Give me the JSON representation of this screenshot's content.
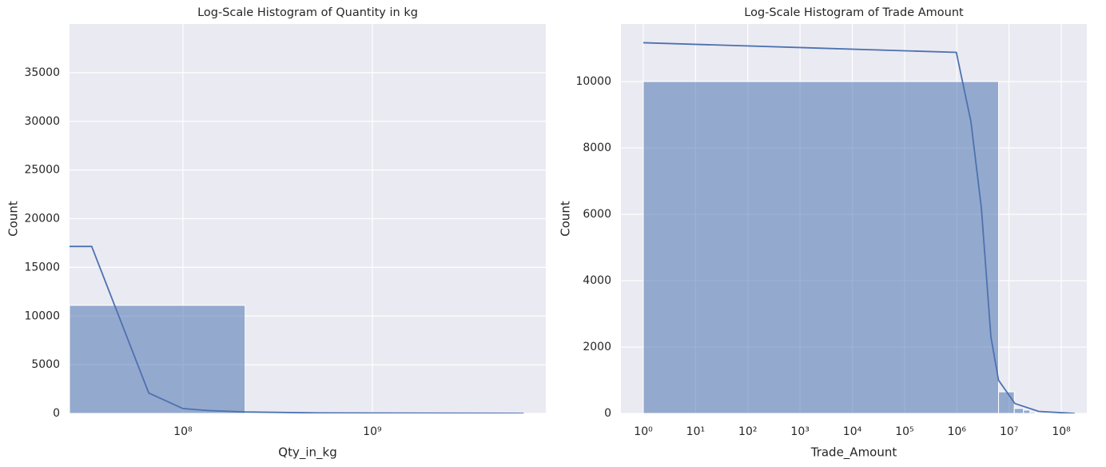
{
  "chart_data": [
    {
      "type": "histogram",
      "title": "Log-Scale Histogram of Quantity in kg",
      "xlabel": "Qty_in_kg",
      "ylabel": "Count",
      "xscale": "log",
      "grid": true,
      "color": "#4c72b0",
      "bins": [
        25200000,
        213000000,
        1800000000,
        8200000000
      ],
      "counts": [
        11100,
        40,
        5
      ],
      "kde": {
        "x": [
          25200000,
          33000000,
          66000000,
          100000000,
          135000000,
          213000000,
          530000000,
          6300000000
        ],
        "y": [
          17150,
          17150,
          2100,
          500,
          300,
          150,
          50,
          0
        ]
      },
      "xlim": [
        25200000,
        8240000000
      ],
      "ylim": [
        0,
        40000
      ],
      "xticks": [
        {
          "value": 100000000,
          "label": "10⁸"
        },
        {
          "value": 1000000000,
          "label": "10⁹"
        }
      ],
      "yticks": [
        0,
        5000,
        10000,
        15000,
        20000,
        25000,
        30000,
        35000
      ]
    },
    {
      "type": "histogram",
      "title": "Log-Scale Histogram of Trade Amount",
      "xlabel": "Trade_Amount",
      "ylabel": "Count",
      "xscale": "log",
      "grid": true,
      "color": "#4c72b0",
      "bins": [
        1,
        6300000,
        12600000,
        18900000,
        25200000,
        31500000,
        37800000
      ],
      "counts": [
        10000,
        650,
        150,
        100,
        40,
        20
      ],
      "kde": {
        "x": [
          1,
          980000,
          1860000,
          2950000,
          4500000,
          6300000,
          12900000,
          37000000,
          180000000
        ],
        "y": [
          11170,
          10880,
          8800,
          6200,
          2300,
          1000,
          300,
          60,
          0
        ]
      },
      "xlim": [
        0.373,
        308000000
      ],
      "ylim": [
        0,
        11735
      ],
      "xticks": [
        {
          "value": 1,
          "label": "10⁰"
        },
        {
          "value": 10,
          "label": "10¹"
        },
        {
          "value": 100,
          "label": "10²"
        },
        {
          "value": 1000,
          "label": "10³"
        },
        {
          "value": 10000,
          "label": "10⁴"
        },
        {
          "value": 100000,
          "label": "10⁵"
        },
        {
          "value": 1000000,
          "label": "10⁶"
        },
        {
          "value": 10000000,
          "label": "10⁷"
        },
        {
          "value": 100000000,
          "label": "10⁸"
        }
      ],
      "yticks": [
        0,
        2000,
        4000,
        6000,
        8000,
        10000
      ]
    }
  ]
}
